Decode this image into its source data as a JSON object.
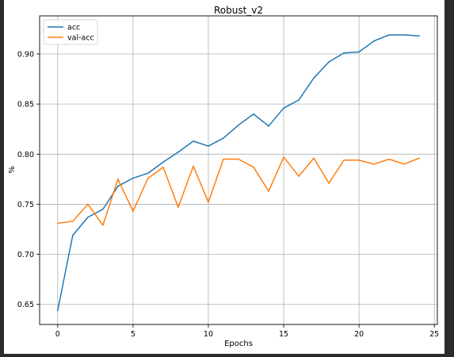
{
  "chart_data": {
    "type": "line",
    "title": "Robust_v2",
    "xlabel": "Epochs",
    "ylabel": "%",
    "xlim": [
      -1.2,
      25.2
    ],
    "ylim": [
      0.63,
      0.938
    ],
    "xticks": [
      0,
      5,
      10,
      15,
      20,
      25
    ],
    "xtick_labels": [
      "0",
      "5",
      "10",
      "15",
      "20",
      "25"
    ],
    "yticks": [
      0.65,
      0.7,
      0.75,
      0.8,
      0.85,
      0.9
    ],
    "ytick_labels": [
      "0.65",
      "0.70",
      "0.75",
      "0.80",
      "0.85",
      "0.90"
    ],
    "grid": true,
    "legend": "upper left",
    "x": [
      0,
      1,
      2,
      3,
      4,
      5,
      6,
      7,
      8,
      9,
      10,
      11,
      12,
      13,
      14,
      15,
      16,
      17,
      18,
      19,
      20,
      21,
      22,
      23,
      24
    ],
    "series": [
      {
        "name": "acc",
        "color": "#1f77b4",
        "values": [
          0.644,
          0.719,
          0.737,
          0.745,
          0.768,
          0.776,
          0.781,
          0.792,
          0.802,
          0.813,
          0.808,
          0.816,
          0.829,
          0.84,
          0.828,
          0.846,
          0.854,
          0.876,
          0.892,
          0.901,
          0.902,
          0.913,
          0.919,
          0.919,
          0.918
        ]
      },
      {
        "name": "val-acc",
        "color": "#ff7f0e",
        "values": [
          0.731,
          0.733,
          0.75,
          0.729,
          0.775,
          0.743,
          0.776,
          0.787,
          0.747,
          0.788,
          0.752,
          0.795,
          0.795,
          0.787,
          0.763,
          0.797,
          0.778,
          0.796,
          0.771,
          0.794,
          0.794,
          0.79,
          0.795,
          0.79,
          0.796
        ]
      }
    ]
  }
}
